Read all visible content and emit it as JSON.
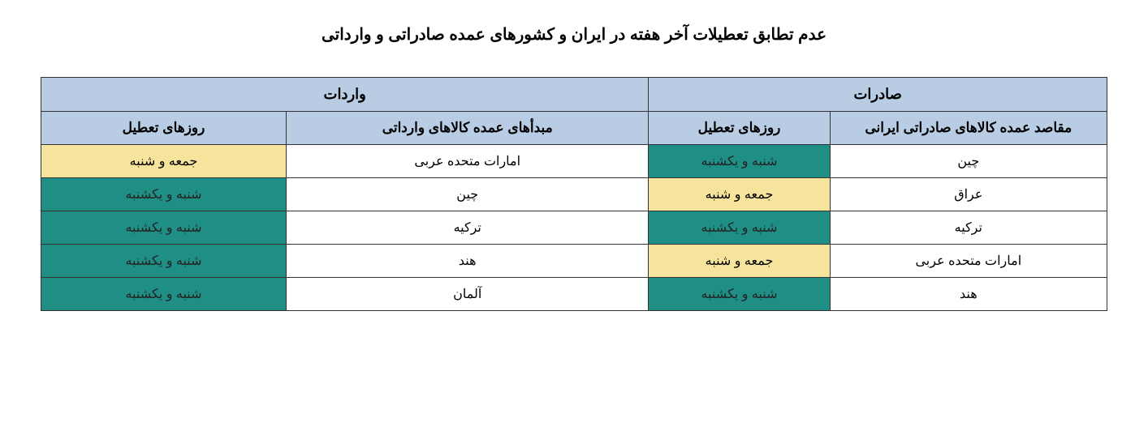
{
  "title": "عدم تطابق تعطیلات آخر هفته در ایران و کشورهای عمده صادراتی و وارداتی",
  "headers": {
    "exports": "صادرات",
    "imports": "واردات",
    "export_dest": "مقاصد عمده کالاهای صادراتی ایرانی",
    "export_days": "روزهای تعطیل",
    "import_origin": "مبدأهای عمده کالاهای وارداتی",
    "import_days": "روزهای تعطیل"
  },
  "rows": [
    {
      "export_dest": "چین",
      "export_days": "شنبه و یکشنبه",
      "export_days_color": "teal",
      "import_origin": "امارات متحده عربی",
      "import_days": "جمعه و شنبه",
      "import_days_color": "yellow"
    },
    {
      "export_dest": "عراق",
      "export_days": "جمعه و شنبه",
      "export_days_color": "yellow",
      "import_origin": "چین",
      "import_days": "شنبه و یکشنبه",
      "import_days_color": "teal"
    },
    {
      "export_dest": "ترکیه",
      "export_days": "شنبه و یکشنبه",
      "export_days_color": "teal",
      "import_origin": "ترکیه",
      "import_days": "شنبه و یکشنبه",
      "import_days_color": "teal"
    },
    {
      "export_dest": "امارات متحده عربی",
      "export_days": "جمعه و شنبه",
      "export_days_color": "yellow",
      "import_origin": "هند",
      "import_days": "شنبه و یکشنبه",
      "import_days_color": "teal"
    },
    {
      "export_dest": "هند",
      "export_days": "شنبه و یکشنبه",
      "export_days_color": "teal",
      "import_origin": "آلمان",
      "import_days": "شنبه و یکشنبه",
      "import_days_color": "teal"
    }
  ],
  "colors": {
    "header_blue": "#b8cce4",
    "teal": "#1f8f86",
    "yellow": "#f6e39c",
    "white": "#ffffff",
    "border": "#333333"
  }
}
